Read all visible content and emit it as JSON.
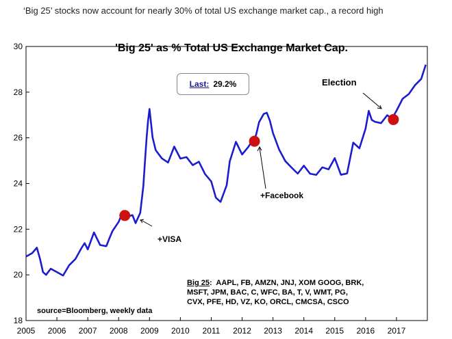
{
  "headline": "‘Big 25’ stocks now account for nearly 30% of total US exchange market cap., a record high",
  "chart_data": {
    "type": "line",
    "title": "'Big 25' as % Total US Exchange Market Cap.",
    "xlabel": "",
    "ylabel": "",
    "xlim": [
      2005,
      2018
    ],
    "ylim": [
      18,
      30
    ],
    "x_ticks": [
      "2005",
      "2006",
      "2007",
      "2008",
      "2009",
      "2010",
      "2011",
      "2012",
      "2013",
      "2014",
      "2015",
      "2016",
      "2017"
    ],
    "y_ticks": [
      18,
      20,
      22,
      24,
      26,
      28,
      30
    ],
    "series": [
      {
        "name": "Big 25 % of total US market cap",
        "color": "#1b1bd0",
        "x": [
          2005.0,
          2005.2,
          2005.35,
          2005.45,
          2005.55,
          2005.65,
          2005.8,
          2006.0,
          2006.2,
          2006.4,
          2006.6,
          2006.8,
          2006.9,
          2007.0,
          2007.2,
          2007.4,
          2007.6,
          2007.7,
          2007.8,
          2008.0,
          2008.15,
          2008.3,
          2008.45,
          2008.55,
          2008.7,
          2008.8,
          2008.85,
          2008.9,
          2008.95,
          2009.0,
          2009.1,
          2009.2,
          2009.4,
          2009.6,
          2009.8,
          2010.0,
          2010.2,
          2010.4,
          2010.6,
          2010.8,
          2011.0,
          2011.15,
          2011.3,
          2011.5,
          2011.6,
          2011.8,
          2012.0,
          2012.2,
          2012.35,
          2012.45,
          2012.55,
          2012.7,
          2012.8,
          2012.9,
          2013.0,
          2013.2,
          2013.4,
          2013.6,
          2013.8,
          2014.0,
          2014.2,
          2014.4,
          2014.6,
          2014.8,
          2015.0,
          2015.2,
          2015.4,
          2015.6,
          2015.8,
          2016.0,
          2016.1,
          2016.2,
          2016.3,
          2016.5,
          2016.7,
          2016.85,
          2017.0,
          2017.2,
          2017.4,
          2017.6,
          2017.8,
          2017.95
        ],
        "values": [
          20.8,
          20.9,
          21.1,
          20.6,
          20.0,
          19.9,
          20.2,
          20.1,
          20.0,
          20.5,
          20.8,
          21.3,
          21.5,
          21.2,
          21.9,
          21.3,
          21.2,
          21.5,
          21.8,
          22.2,
          22.7,
          22.5,
          22.6,
          22.3,
          22.8,
          24.0,
          25.0,
          26.0,
          26.8,
          27.3,
          26.0,
          25.4,
          25.0,
          24.8,
          25.5,
          25.0,
          25.1,
          24.8,
          25.0,
          24.5,
          24.2,
          23.5,
          23.3,
          24.0,
          25.0,
          25.8,
          25.2,
          25.5,
          25.8,
          26.0,
          26.6,
          27.0,
          27.1,
          26.8,
          26.3,
          25.6,
          25.1,
          24.8,
          24.5,
          24.8,
          24.4,
          24.3,
          24.6,
          24.5,
          25.0,
          24.3,
          24.4,
          25.8,
          25.6,
          26.5,
          27.3,
          26.9,
          26.8,
          26.7,
          27.0,
          26.8,
          27.1,
          27.6,
          27.8,
          28.2,
          28.5,
          29.2
        ]
      }
    ],
    "last_label": "Last:",
    "last_value": "29.2%",
    "annotations": [
      {
        "x": 2008.2,
        "y": 22.6,
        "label": "+VISA"
      },
      {
        "x": 2012.4,
        "y": 25.85,
        "label": "+Facebook"
      },
      {
        "x": 2016.9,
        "y": 26.8,
        "label": "Election"
      }
    ],
    "source_note": "source=Bloomberg, weekly data",
    "big25_label": "Big 25",
    "big25_lines": [
      "AAPL, FB, AMZN, JNJ, XOM GOOG, BRK,",
      "MSFT, JPM, BAC, C, WFC, BA, T, V, WMT, PG,",
      "CVX, PFE, HD, VZ, KO, ORCL, CMCSA, CSCO"
    ]
  }
}
